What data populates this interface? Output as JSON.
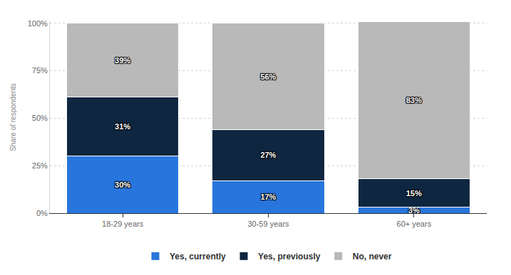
{
  "chart_data": {
    "type": "bar",
    "stacked": true,
    "data_labels": true,
    "grid": true,
    "legend": "bottom",
    "y_label": "Share of respondents",
    "categories": [
      "18-29 years",
      "30-59 years",
      "60+ years"
    ],
    "ylim": [
      0,
      101
    ],
    "yticks": [
      {
        "value": 0,
        "label": "0%"
      },
      {
        "value": 25,
        "label": "25%"
      },
      {
        "value": 50,
        "label": "50%"
      },
      {
        "value": 75,
        "label": "75%"
      },
      {
        "value": 100,
        "label": "100%"
      }
    ],
    "series": [
      {
        "name": "Yes, currently",
        "color": "#2876dd",
        "values": [
          30,
          17,
          3
        ],
        "value_labels": [
          "30%",
          "17%",
          "3%"
        ]
      },
      {
        "name": "Yes, previously",
        "color": "#0f2640",
        "values": [
          31,
          27,
          15
        ],
        "value_labels": [
          "31%",
          "27%",
          "15%"
        ]
      },
      {
        "name": "No, never",
        "color": "#b9b9b9",
        "values": [
          39,
          56,
          83
        ],
        "value_labels": [
          "39%",
          "56%",
          "83%"
        ]
      }
    ]
  }
}
